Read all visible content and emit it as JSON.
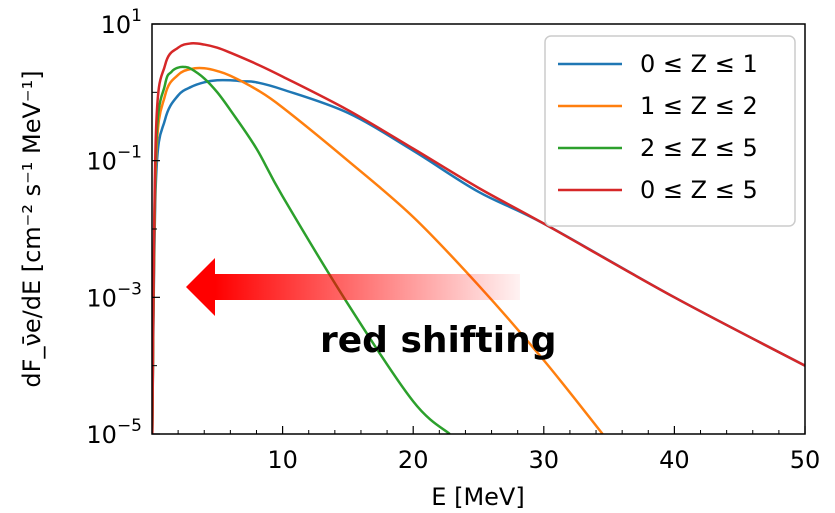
{
  "chart_data": {
    "type": "line",
    "xlabel": "E [MeV]",
    "ylabel": "dF_ν̄e/dE [cm⁻² s⁻¹ MeV⁻¹]",
    "xlim": [
      0,
      50
    ],
    "ylim": [
      1e-05,
      10
    ],
    "yscale": "log",
    "grid": false,
    "legend_position": "top-right",
    "x_ticks": [
      10,
      20,
      30,
      40,
      50
    ],
    "y_ticks": [
      {
        "value": 1e-05,
        "base": "10",
        "exp": "−5"
      },
      {
        "value": 0.001,
        "base": "10",
        "exp": "−3"
      },
      {
        "value": 0.1,
        "base": "10",
        "exp": "−1"
      },
      {
        "value": 10,
        "base": "10",
        "exp": "1"
      }
    ],
    "series": [
      {
        "name": "0 ≤ Z ≤ 1",
        "color": "#1f77b4",
        "x": [
          0.02,
          0.3,
          1,
          2,
          3,
          4,
          5,
          6,
          7,
          8,
          10,
          15,
          20,
          25,
          30,
          40,
          50
        ],
        "y": [
          1e-05,
          0.05,
          0.4,
          0.9,
          1.2,
          1.4,
          1.5,
          1.5,
          1.45,
          1.4,
          1.1,
          0.5,
          0.14,
          0.035,
          0.012,
          0.001,
          0.0001
        ]
      },
      {
        "name": "1 ≤ Z ≤ 2",
        "color": "#ff7f0e",
        "x": [
          0.02,
          0.3,
          1,
          2,
          3,
          4,
          5,
          6,
          8,
          10,
          15,
          20,
          25,
          30,
          34.5
        ],
        "y": [
          1e-05,
          0.09,
          0.9,
          1.8,
          2.2,
          2.25,
          2.05,
          1.75,
          1.1,
          0.6,
          0.1,
          0.015,
          0.0015,
          0.00012,
          1e-05
        ]
      },
      {
        "name": "2 ≤ Z ≤ 5",
        "color": "#2ca02c",
        "x": [
          0.02,
          0.3,
          1,
          1.5,
          2,
          2.5,
          3,
          4,
          5,
          6,
          8,
          10,
          15,
          20,
          22.8
        ],
        "y": [
          1e-05,
          0.14,
          1.3,
          2.0,
          2.3,
          2.35,
          2.2,
          1.6,
          1.0,
          0.55,
          0.15,
          0.03,
          0.0008,
          3e-05,
          1e-05
        ]
      },
      {
        "name": "0 ≤ Z ≤ 5",
        "color": "#d62728",
        "x": [
          0.02,
          0.3,
          1,
          2,
          3,
          4,
          5,
          6,
          8,
          10,
          15,
          20,
          25,
          30,
          40,
          50
        ],
        "y": [
          1e-05,
          0.25,
          2.5,
          4.5,
          5.2,
          5.0,
          4.5,
          3.8,
          2.6,
          1.7,
          0.55,
          0.15,
          0.04,
          0.012,
          0.001,
          0.0001
        ]
      }
    ],
    "annotation": {
      "text": "red shifting",
      "color": "#ff0000"
    }
  }
}
